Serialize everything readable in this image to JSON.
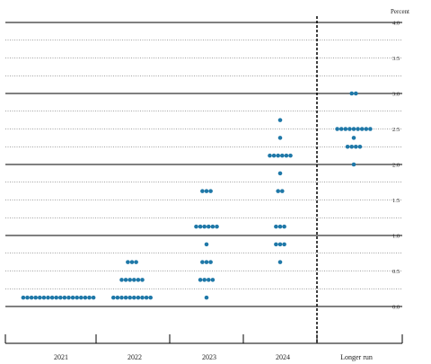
{
  "chart_data": {
    "type": "scatter",
    "unit_label": "Percent",
    "categories": [
      "2021",
      "2022",
      "2023",
      "2024",
      "Longer run"
    ],
    "ylim": [
      -0.125,
      4.125
    ],
    "yticks": [
      0.0,
      0.5,
      1.0,
      1.5,
      2.0,
      2.5,
      3.0,
      3.5,
      4.0
    ],
    "ytick_labels": [
      "0.0",
      "0.5",
      "1.0",
      "1.5",
      "2.0",
      "2.5",
      "3.0",
      "3.5",
      "4.0"
    ],
    "grid_step": 0.25,
    "dot_color": "#1f78a8",
    "series": [
      {
        "category": "2021",
        "points": [
          {
            "y": 0.125,
            "count": 18
          }
        ]
      },
      {
        "category": "2022",
        "points": [
          {
            "y": 0.125,
            "count": 10
          },
          {
            "y": 0.375,
            "count": 6
          },
          {
            "y": 0.625,
            "count": 3
          }
        ]
      },
      {
        "category": "2023",
        "points": [
          {
            "y": 0.125,
            "count": 1
          },
          {
            "y": 0.375,
            "count": 4
          },
          {
            "y": 0.625,
            "count": 3
          },
          {
            "y": 0.875,
            "count": 1
          },
          {
            "y": 1.125,
            "count": 6
          },
          {
            "y": 1.625,
            "count": 3
          }
        ]
      },
      {
        "category": "2024",
        "points": [
          {
            "y": 0.625,
            "count": 1
          },
          {
            "y": 0.875,
            "count": 3
          },
          {
            "y": 1.125,
            "count": 3
          },
          {
            "y": 1.625,
            "count": 2
          },
          {
            "y": 1.875,
            "count": 1
          },
          {
            "y": 2.125,
            "count": 6
          },
          {
            "y": 2.375,
            "count": 1
          },
          {
            "y": 2.625,
            "count": 1
          }
        ]
      },
      {
        "category": "Longer run",
        "points": [
          {
            "y": 2.0,
            "count": 1
          },
          {
            "y": 2.25,
            "count": 4
          },
          {
            "y": 2.375,
            "count": 1
          },
          {
            "y": 2.5,
            "count": 9
          },
          {
            "y": 3.0,
            "count": 2
          }
        ]
      }
    ]
  }
}
